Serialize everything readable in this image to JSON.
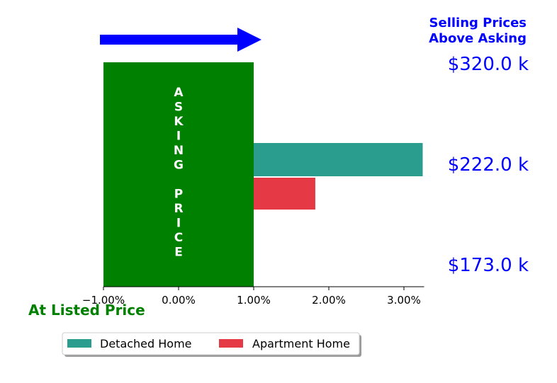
{
  "chart_data": {
    "type": "bar",
    "orientation": "horizontal",
    "title": "Selling Prices Above Asking",
    "title_lines": [
      "Selling Prices",
      "Above Asking"
    ],
    "xlim": [
      -1.0,
      3.25
    ],
    "x_ticks": [
      -1.0,
      0.0,
      1.0,
      2.0,
      3.0
    ],
    "x_tick_labels": [
      "−1.00%",
      "0.00%",
      "1.00%",
      "2.00%",
      "3.00%"
    ],
    "asking_price_band": {
      "label": "ASKING PRICE",
      "from": -1.0,
      "to": 1.0,
      "color": "#008000"
    },
    "series": [
      {
        "name": "Detached Home",
        "value": 3.25,
        "color": "#2a9d8f"
      },
      {
        "name": "Apartment Home",
        "value": 1.82,
        "color": "#e63946"
      }
    ],
    "price_labels": [
      "$320.0 k",
      "$222.0 k",
      "$173.0 k"
    ],
    "bottom_label": "At Listed Price",
    "legend_placement": "bottom-center",
    "colors": {
      "accent": "#0000ff",
      "asking": "#008000",
      "bottom_label": "#008000"
    }
  }
}
